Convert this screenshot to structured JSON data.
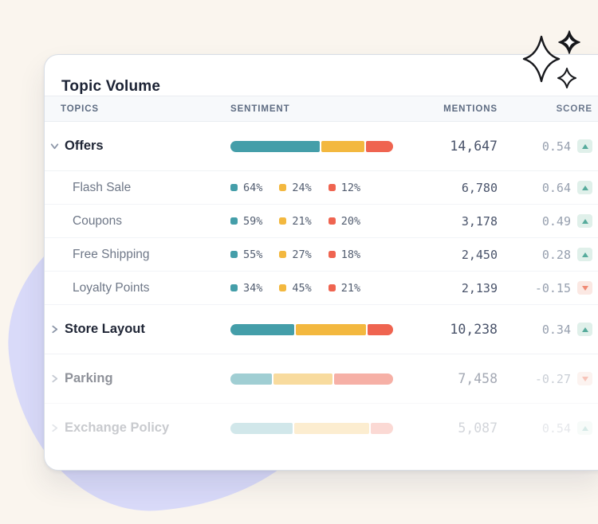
{
  "page": {
    "background_color": "#FAF5EE",
    "blob_color": "#D9DAF9"
  },
  "card": {
    "title": "Topic Volume",
    "columns": [
      "TOPICS",
      "SENTIMENT",
      "MENTIONS",
      "SCORE"
    ],
    "colors": {
      "positive": "#449EA9",
      "neutral": "#F3B83F",
      "negative": "#EF6450",
      "trend_up": "#56AB9C",
      "trend_up_bg": "#E0F0EA",
      "trend_down": "#F08A75",
      "trend_down_bg": "#FBE8E3"
    },
    "rows": [
      {
        "type": "parent",
        "label": "Offers",
        "chevron": "down",
        "bar": {
          "positive": 56,
          "neutral": 27,
          "negative": 17
        },
        "mentions": "14,647",
        "score": "0.54",
        "trend": "up",
        "opacity": 1
      },
      {
        "type": "child",
        "label": "Flash Sale",
        "legend": {
          "positive": "64%",
          "neutral": "24%",
          "negative": "12%"
        },
        "mentions": "6,780",
        "score": "0.64",
        "trend": "up",
        "opacity": 1
      },
      {
        "type": "child",
        "label": "Coupons",
        "legend": {
          "positive": "59%",
          "neutral": "21%",
          "negative": "20%"
        },
        "mentions": "3,178",
        "score": "0.49",
        "trend": "up",
        "opacity": 1
      },
      {
        "type": "child",
        "label": "Free Shipping",
        "legend": {
          "positive": "55%",
          "neutral": "27%",
          "negative": "18%"
        },
        "mentions": "2,450",
        "score": "0.28",
        "trend": "up",
        "opacity": 1
      },
      {
        "type": "child",
        "label": "Loyalty Points",
        "legend": {
          "positive": "34%",
          "neutral": "45%",
          "negative": "21%"
        },
        "mentions": "2,139",
        "score": "-0.15",
        "trend": "down",
        "opacity": 1
      },
      {
        "type": "parent",
        "label": "Store Layout",
        "chevron": "right",
        "bar": {
          "positive": 40,
          "neutral": 44,
          "negative": 16
        },
        "mentions": "10,238",
        "score": "0.34",
        "trend": "up",
        "opacity": 1
      },
      {
        "type": "parent",
        "label": "Parking",
        "chevron": "right",
        "bar": {
          "positive": 26,
          "neutral": 37,
          "negative": 37
        },
        "mentions": "7,458",
        "score": "-0.27",
        "trend": "down",
        "opacity": 0.5
      },
      {
        "type": "parent",
        "label": "Exchange Policy",
        "chevron": "right",
        "bar": {
          "positive": 39,
          "neutral": 47,
          "negative": 14
        },
        "mentions": "5,087",
        "score": "0.54",
        "trend": "up",
        "opacity": 0.24
      }
    ]
  },
  "decorations": {
    "sparkle_icons": [
      "sparkle-large-icon",
      "sparkle-filled-icon",
      "sparkle-small-icon"
    ]
  }
}
